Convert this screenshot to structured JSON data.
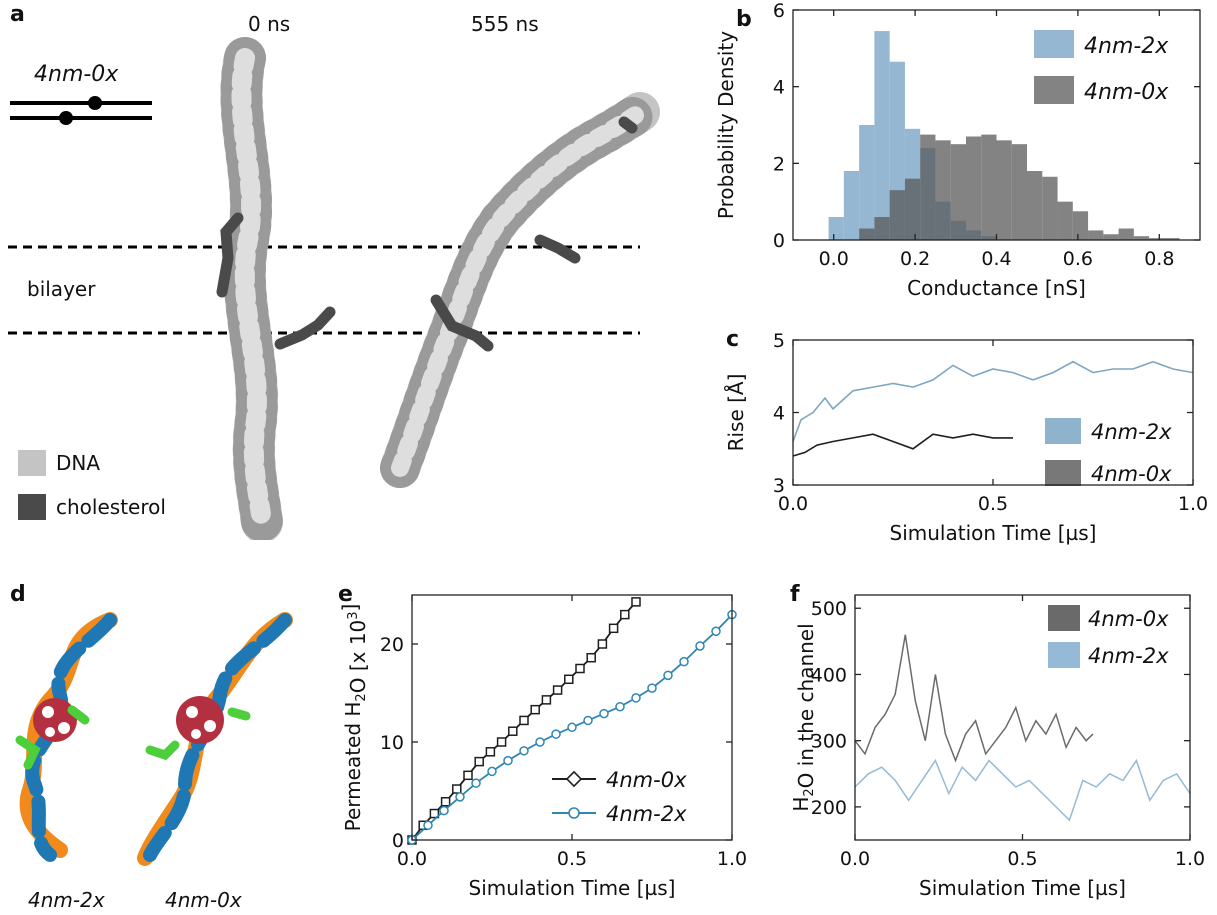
{
  "panels": {
    "a": {
      "label": "a",
      "time_left": "0 ns",
      "time_right": "555 ns",
      "design_name": "4nm-0x",
      "bilayer_label": "bilayer",
      "legend": [
        {
          "name": "DNA",
          "color": "#c4c4c4"
        },
        {
          "name": "cholesterol",
          "color": "#4a4a4a"
        }
      ]
    },
    "d": {
      "label": "d",
      "captions": [
        "4nm-2x",
        "4nm-0x"
      ],
      "colors": {
        "strand1": "#f08a1c",
        "strand2": "#1f77b4",
        "cholesterol": "#4ccf3a",
        "water": "#b23040"
      }
    }
  },
  "chart_data": [
    {
      "id": "b",
      "panel_label": "b",
      "type": "histogram",
      "xlabel": "Conductance [nS]",
      "ylabel": "Probability Density",
      "xlim": [
        -0.1,
        0.9
      ],
      "ylim": [
        0,
        6
      ],
      "xticks": [
        "0.0",
        "0.2",
        "0.4",
        "0.6",
        "0.8"
      ],
      "yticks": [
        "0",
        "2",
        "4",
        "6"
      ],
      "legend_position": "top-right",
      "series": [
        {
          "name": "4nm-2x",
          "color": "#8fb3cf",
          "bins": [
            [
              -0.0125,
              0.6
            ],
            [
              0.025,
              1.8
            ],
            [
              0.0625,
              3.0
            ],
            [
              0.1,
              5.45
            ],
            [
              0.1375,
              4.65
            ],
            [
              0.175,
              2.9
            ],
            [
              0.2125,
              2.4
            ],
            [
              0.25,
              1.0
            ],
            [
              0.2875,
              0.5
            ],
            [
              0.325,
              0.25
            ],
            [
              0.3625,
              0.1
            ]
          ]
        },
        {
          "name": "4nm-0x",
          "color": "#5a5a5a",
          "bins": [
            [
              0.0625,
              0.3
            ],
            [
              0.1,
              0.6
            ],
            [
              0.1375,
              1.3
            ],
            [
              0.175,
              1.6
            ],
            [
              0.2125,
              2.75
            ],
            [
              0.25,
              2.6
            ],
            [
              0.2875,
              2.5
            ],
            [
              0.325,
              2.7
            ],
            [
              0.3625,
              2.75
            ],
            [
              0.4,
              2.6
            ],
            [
              0.4375,
              2.5
            ],
            [
              0.475,
              1.8
            ],
            [
              0.5125,
              1.65
            ],
            [
              0.55,
              1.0
            ],
            [
              0.5875,
              0.75
            ],
            [
              0.625,
              0.25
            ],
            [
              0.6625,
              0.15
            ],
            [
              0.7,
              0.3
            ],
            [
              0.7375,
              0.1
            ],
            [
              0.775,
              0.05
            ],
            [
              0.8125,
              0.05
            ]
          ]
        }
      ]
    },
    {
      "id": "c",
      "panel_label": "c",
      "type": "line",
      "xlabel": "Simulation Time [µs]",
      "ylabel": "Rise [Å]",
      "xlim": [
        0,
        1.0
      ],
      "ylim": [
        3,
        5
      ],
      "xticks": [
        "0.0",
        "0.5",
        "1.0"
      ],
      "yticks": [
        "3",
        "4",
        "5"
      ],
      "legend_position": "bottom-right",
      "series": [
        {
          "name": "4nm-2x",
          "color": "#7da6c4",
          "x": [
            0.0,
            0.02,
            0.05,
            0.08,
            0.1,
            0.15,
            0.2,
            0.25,
            0.3,
            0.35,
            0.4,
            0.45,
            0.5,
            0.55,
            0.6,
            0.65,
            0.7,
            0.75,
            0.8,
            0.85,
            0.9,
            0.95,
            1.0
          ],
          "y": [
            3.6,
            3.9,
            4.0,
            4.2,
            4.05,
            4.3,
            4.35,
            4.4,
            4.35,
            4.45,
            4.65,
            4.5,
            4.6,
            4.55,
            4.45,
            4.55,
            4.7,
            4.55,
            4.6,
            4.6,
            4.7,
            4.6,
            4.55
          ]
        },
        {
          "name": "4nm-0x",
          "color": "#1e1e1e",
          "x": [
            0.0,
            0.03,
            0.06,
            0.1,
            0.15,
            0.2,
            0.25,
            0.3,
            0.35,
            0.4,
            0.45,
            0.5,
            0.55
          ],
          "y": [
            3.4,
            3.45,
            3.55,
            3.6,
            3.65,
            3.7,
            3.6,
            3.5,
            3.7,
            3.65,
            3.7,
            3.65,
            3.65
          ]
        }
      ]
    },
    {
      "id": "e",
      "panel_label": "e",
      "type": "line",
      "xlabel": "Simulation Time [µs]",
      "ylabel": "Permeated H₂O [x 10³]",
      "xlim": [
        0,
        1.0
      ],
      "ylim": [
        0,
        25
      ],
      "xticks": [
        "0.0",
        "0.5",
        "1.0"
      ],
      "yticks": [
        "0",
        "10",
        "20"
      ],
      "legend_position": "bottom-right",
      "series": [
        {
          "name": "4nm-0x",
          "color": "#1e1e1e",
          "marker": "square",
          "x": [
            0.0,
            0.035,
            0.07,
            0.105,
            0.14,
            0.175,
            0.21,
            0.245,
            0.28,
            0.315,
            0.35,
            0.385,
            0.42,
            0.455,
            0.49,
            0.525,
            0.56,
            0.595,
            0.63,
            0.665,
            0.7
          ],
          "y": [
            0,
            1.5,
            2.7,
            3.9,
            5.2,
            6.6,
            8.0,
            9.0,
            10.0,
            11.1,
            12.2,
            13.3,
            14.3,
            15.3,
            16.4,
            17.5,
            18.6,
            20.0,
            21.6,
            23.0,
            24.3
          ]
        },
        {
          "name": "4nm-2x",
          "color": "#2f86b4",
          "marker": "circle",
          "x": [
            0.0,
            0.05,
            0.1,
            0.15,
            0.2,
            0.25,
            0.3,
            0.35,
            0.4,
            0.45,
            0.5,
            0.55,
            0.6,
            0.65,
            0.7,
            0.75,
            0.8,
            0.85,
            0.9,
            0.95,
            1.0
          ],
          "y": [
            0,
            1.5,
            3.0,
            4.4,
            5.8,
            7.0,
            8.1,
            9.1,
            10.0,
            10.8,
            11.5,
            12.2,
            12.9,
            13.6,
            14.5,
            15.5,
            16.8,
            18.2,
            19.8,
            21.3,
            23.0
          ]
        }
      ]
    },
    {
      "id": "f",
      "panel_label": "f",
      "type": "line",
      "xlabel": "Simulation Time [µs]",
      "ylabel": "H₂O in the channel",
      "xlim": [
        0,
        1.0
      ],
      "ylim": [
        150,
        520
      ],
      "xticks": [
        "0.0",
        "0.5",
        "1.0"
      ],
      "yticks": [
        "200",
        "300",
        "400",
        "500"
      ],
      "legend_position": "top-right",
      "series": [
        {
          "name": "4nm-0x",
          "color": "#6a6a6a",
          "x": [
            0.0,
            0.03,
            0.06,
            0.09,
            0.12,
            0.15,
            0.18,
            0.21,
            0.24,
            0.27,
            0.3,
            0.33,
            0.36,
            0.39,
            0.42,
            0.45,
            0.48,
            0.51,
            0.54,
            0.57,
            0.6,
            0.63,
            0.66,
            0.69,
            0.71
          ],
          "y": [
            300,
            280,
            320,
            340,
            370,
            460,
            360,
            300,
            400,
            310,
            270,
            310,
            330,
            280,
            300,
            320,
            350,
            300,
            330,
            310,
            340,
            290,
            320,
            300,
            310
          ]
        },
        {
          "name": "4nm-2x",
          "color": "#94bad6",
          "x": [
            0.0,
            0.04,
            0.08,
            0.12,
            0.16,
            0.2,
            0.24,
            0.28,
            0.32,
            0.36,
            0.4,
            0.44,
            0.48,
            0.52,
            0.56,
            0.6,
            0.64,
            0.68,
            0.72,
            0.76,
            0.8,
            0.84,
            0.88,
            0.92,
            0.96,
            1.0
          ],
          "y": [
            230,
            250,
            260,
            240,
            210,
            240,
            270,
            220,
            260,
            240,
            270,
            250,
            230,
            240,
            220,
            200,
            180,
            240,
            230,
            250,
            240,
            270,
            210,
            240,
            250,
            220
          ]
        }
      ]
    }
  ]
}
